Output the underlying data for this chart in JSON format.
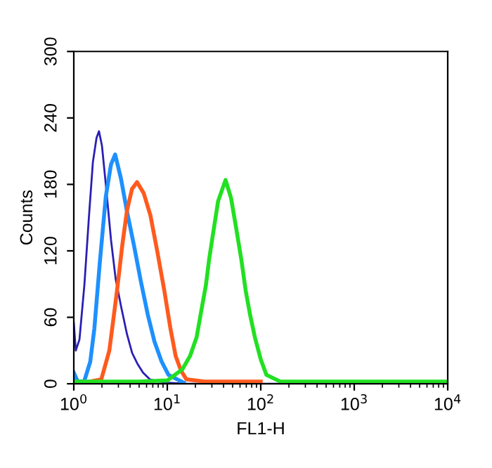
{
  "chart_data": {
    "type": "line",
    "xlabel": "FL1-H",
    "ylabel": "Counts",
    "log": "x",
    "xlim": [
      1,
      10000
    ],
    "ylim": [
      0,
      300
    ],
    "xticks": [
      {
        "value": 1,
        "label": "10$^{0}$"
      },
      {
        "value": 10,
        "label": "10$^{1}$"
      },
      {
        "value": 100,
        "label": "10$^{2}$"
      },
      {
        "value": 1000,
        "label": "10$^{3}$"
      },
      {
        "value": 10000,
        "label": "10$^{4}$"
      }
    ],
    "yticks": [
      0,
      60,
      120,
      180,
      240,
      300
    ],
    "grid": false,
    "legend": false,
    "series": [
      {
        "color": "#2a1fb4",
        "x": [
          1.0,
          1.05,
          1.15,
          1.3,
          1.45,
          1.6,
          1.75,
          1.86,
          2.0,
          2.2,
          2.5,
          2.8,
          3.2,
          3.7,
          4.2,
          4.8,
          5.5,
          6.5,
          8,
          10,
          15,
          10000
        ],
        "values": [
          55,
          30,
          40,
          90,
          150,
          200,
          222,
          228,
          215,
          180,
          130,
          95,
          70,
          45,
          28,
          18,
          10,
          4,
          2,
          1,
          0,
          0
        ]
      },
      {
        "color": "#1e90ff",
        "x": [
          1.0,
          1.1,
          1.3,
          1.5,
          1.66,
          1.9,
          2.2,
          2.5,
          2.77,
          3.2,
          3.7,
          4.4,
          5.2,
          6.2,
          7.3,
          8.7,
          10.3,
          15
        ],
        "values": [
          10,
          2,
          3,
          20,
          50,
          110,
          169,
          198,
          207,
          185,
          156,
          125,
          93,
          62,
          38,
          20,
          8,
          1
        ]
      },
      {
        "color": "#ff5a1e",
        "x": [
          1.5,
          1.97,
          2.4,
          2.9,
          3.3,
          3.7,
          4.2,
          4.75,
          5.6,
          6.6,
          7.8,
          9.3,
          10.8,
          12.3,
          14,
          16,
          25,
          100
        ],
        "values": [
          2,
          4,
          30,
          84,
          125,
          156,
          176,
          182,
          172,
          152,
          120,
          84,
          50,
          25,
          12,
          4,
          2,
          2
        ]
      },
      {
        "color": "#22e022",
        "x": [
          1.0,
          5,
          10,
          14.5,
          17.5,
          20.6,
          23,
          25.9,
          28,
          30.8,
          35,
          42,
          48,
          54.7,
          62,
          69,
          77,
          86.5,
          100,
          115,
          162,
          10000
        ],
        "values": [
          2,
          2,
          3,
          13,
          25,
          42,
          65,
          89,
          112,
          135,
          165,
          184,
          168,
          140,
          112,
          84,
          62,
          42,
          22,
          8,
          2,
          2
        ]
      }
    ]
  }
}
